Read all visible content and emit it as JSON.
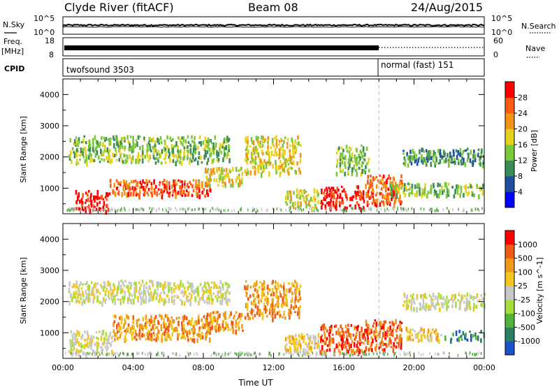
{
  "header": {
    "station": "Clyde River (fitACF)",
    "beam": "Beam 08",
    "date": "24/Aug/2015"
  },
  "top_panels": {
    "nsky_label": "N.Sky",
    "nsky_ticks": [
      "10^5",
      "10^0"
    ],
    "nsearch_label": "N.Search",
    "nsearch_ticks": [
      "10^5",
      "10^0"
    ],
    "freq_label_1": "Freq.",
    "freq_label_2": "[MHz]",
    "freq_ticks": [
      "18",
      "8"
    ],
    "nave_label": "Nave",
    "nave_ticks": [
      "60",
      "0"
    ],
    "cpid_label": "CPID",
    "cpid_modes": [
      {
        "name": "twofsound 3503",
        "start_hour": 0,
        "end_hour": 18.0
      },
      {
        "name": "normal (fast) 151",
        "start_hour": 18.0,
        "end_hour": 24
      }
    ]
  },
  "chart_data": [
    {
      "type": "heatmap",
      "title": "",
      "parameter": "Power",
      "ylabel": "Slant Range [km]",
      "xlabel": "",
      "x_range_hours": [
        0,
        24
      ],
      "ylim": [
        180,
        4500
      ],
      "y_ticks": [
        1000,
        2000,
        3000,
        4000
      ],
      "colorbar": {
        "label": "Power [dB]",
        "tick_labels": [
          "28",
          "24",
          "20",
          "16",
          "12",
          "8",
          "4"
        ],
        "colors": [
          "#0000ff",
          "#1f4ea0",
          "#3c8c5a",
          "#7cc83a",
          "#e6d21e",
          "#f09614",
          "#ff5a14",
          "#ff0000"
        ]
      },
      "echo_regions": [
        {
          "t0": 0.7,
          "t1": 2.6,
          "r0": 300,
          "r1": 950,
          "level": 7
        },
        {
          "t0": 2.6,
          "t1": 8.4,
          "r0": 800,
          "r1": 1300,
          "level": 6
        },
        {
          "t0": 8.0,
          "t1": 10.2,
          "r0": 1100,
          "r1": 1700,
          "level": 4
        },
        {
          "t0": 0.3,
          "t1": 9.5,
          "r0": 1850,
          "r1": 2700,
          "level": 3
        },
        {
          "t0": 10.3,
          "t1": 13.5,
          "r0": 1500,
          "r1": 2700,
          "level": 4
        },
        {
          "t0": 12.6,
          "t1": 14.5,
          "r0": 400,
          "r1": 1000,
          "level": 4
        },
        {
          "t0": 14.6,
          "t1": 17.2,
          "r0": 380,
          "r1": 1100,
          "level": 7
        },
        {
          "t0": 15.5,
          "t1": 17.4,
          "r0": 1500,
          "r1": 2400,
          "level": 3
        },
        {
          "t0": 17.2,
          "t1": 19.3,
          "r0": 500,
          "r1": 1450,
          "level": 6
        },
        {
          "t0": 18.5,
          "t1": 24,
          "r0": 800,
          "r1": 1200,
          "level": 3
        },
        {
          "t0": 19.3,
          "t1": 24,
          "r0": 1800,
          "r1": 2300,
          "level": 2
        }
      ]
    },
    {
      "type": "heatmap",
      "title": "",
      "parameter": "Velocity",
      "ylabel": "Slant Range [km]",
      "xlabel": "Time UT",
      "x_range_hours": [
        0,
        24
      ],
      "x_tick_labels": [
        "00:00",
        "04:00",
        "08:00",
        "12:00",
        "16:00",
        "20:00",
        "00:00"
      ],
      "ylim": [
        180,
        4500
      ],
      "y_ticks": [
        1000,
        2000,
        3000,
        4000
      ],
      "colorbar": {
        "label": "Velocity [m s^-1]",
        "tick_labels": [
          "1000",
          "500",
          "100",
          "25",
          "-25",
          "-100",
          "-500",
          "-1000"
        ],
        "colors": [
          "#1e50c8",
          "#2b7f62",
          "#52b33c",
          "#a7dd3c",
          "#c8c8c8",
          "#f2c81e",
          "#f09a1a",
          "#f05a14",
          "#ff0000"
        ]
      },
      "echo_regions": [
        {
          "t0": 0.3,
          "t1": 2.8,
          "r0": 350,
          "r1": 1100,
          "level": 4
        },
        {
          "t0": 2.8,
          "t1": 8.4,
          "r0": 800,
          "r1": 1600,
          "level": 6
        },
        {
          "t0": 8.0,
          "t1": 10.2,
          "r0": 1100,
          "r1": 1700,
          "level": 6
        },
        {
          "t0": 0.3,
          "t1": 9.5,
          "r0": 2000,
          "r1": 2700,
          "level": 4
        },
        {
          "t0": 10.3,
          "t1": 13.5,
          "r0": 1500,
          "r1": 2700,
          "level": 6
        },
        {
          "t0": 12.6,
          "t1": 14.6,
          "r0": 400,
          "r1": 1000,
          "level": 5
        },
        {
          "t0": 14.6,
          "t1": 17.2,
          "r0": 380,
          "r1": 1300,
          "level": 7
        },
        {
          "t0": 17.2,
          "t1": 19.3,
          "r0": 500,
          "r1": 1450,
          "level": 7
        },
        {
          "t0": 19.5,
          "t1": 21.5,
          "r0": 800,
          "r1": 1200,
          "level": 5
        },
        {
          "t0": 21.5,
          "t1": 24,
          "r0": 800,
          "r1": 1100,
          "level": 1
        },
        {
          "t0": 19.3,
          "t1": 24,
          "r0": 1800,
          "r1": 2300,
          "level": 4
        }
      ]
    }
  ]
}
